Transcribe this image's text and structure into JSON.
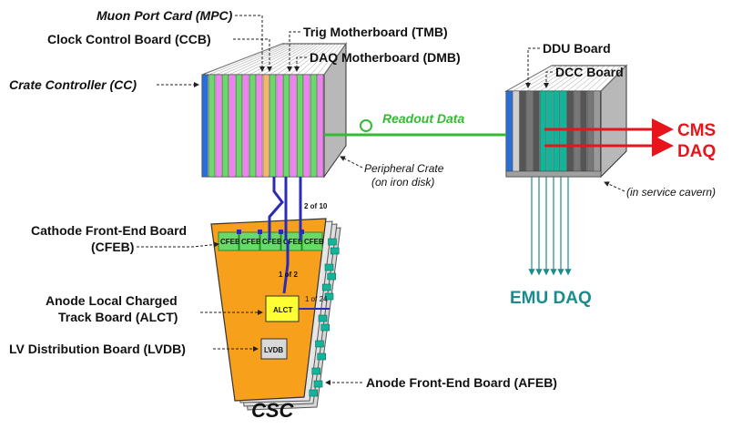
{
  "colors": {
    "crate_front": "#e8e8e8",
    "crate_top": "#ffffff",
    "crate_side": "#b8b8b8",
    "board_pink": "#ee82ee",
    "board_green": "#6cd86c",
    "board_teal": "#12b59a",
    "board_blue": "#2a6fd6",
    "board_orange": "#f5b56a",
    "csc_orange": "#f7a01c",
    "readout_green": "#33bb33",
    "cms_red": "#e8141b",
    "emu_teal": "#1a8c8c",
    "cable_blue": "#2b2bb5"
  },
  "labels": {
    "muon_port_card": "Muon Port Card (MPC)",
    "clock_control_board": "Clock Control Board (CCB)",
    "trig_motherboard": "Trig Motherboard (TMB)",
    "daq_motherboard": "DAQ Motherboard (DMB)",
    "crate_controller": "Crate Controller (CC)",
    "peripheral_crate_line1": "Peripheral Crate",
    "peripheral_crate_line2": "(on iron disk)",
    "ddu_board": "DDU Board",
    "dcc_board": "DCC Board",
    "readout_data": "Readout Data",
    "cms_line1": "CMS",
    "cms_line2": "DAQ",
    "service_cavern": "(in service cavern)",
    "emu_daq": "EMU DAQ",
    "cfeb_line1": "Cathode Front-End Board",
    "cfeb_line2": "(CFEB)",
    "alct_line1": "Anode Local Charged",
    "alct_line2": "Track  Board (ALCT)",
    "lvdb": "LV Distribution Board (LVDB)",
    "afeb": "Anode Front-End Board (AFEB)",
    "csc": "CSC",
    "two_of_ten": "2 of 10",
    "one_of_two": "1 of 2",
    "one_of_24": "1 of 24",
    "alct_box": "ALCT",
    "lvdb_box": "LVDB",
    "cfeb_box": "CFEB"
  }
}
